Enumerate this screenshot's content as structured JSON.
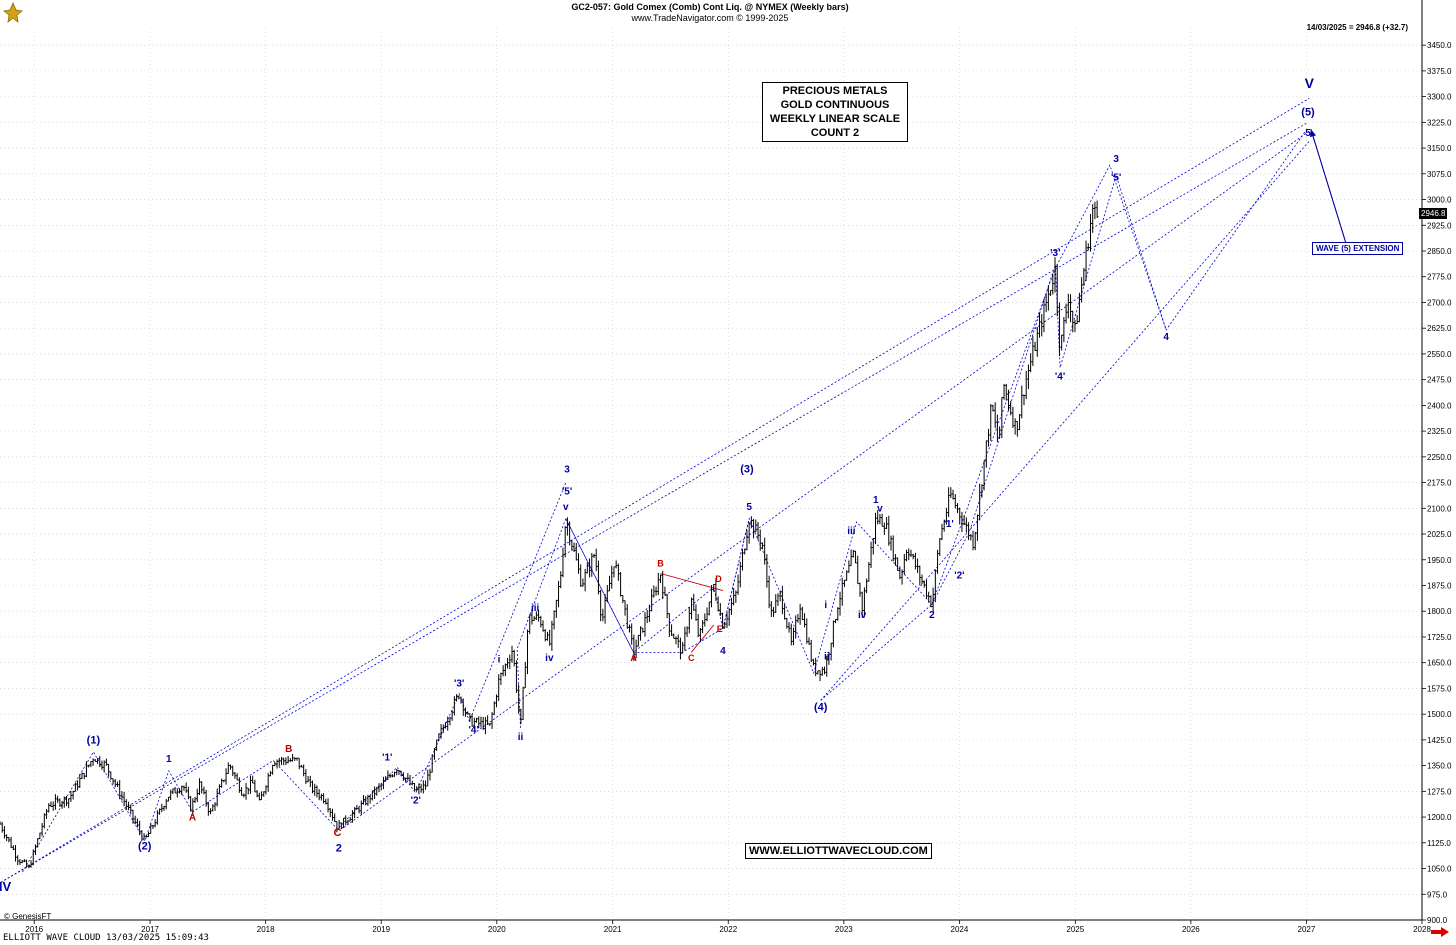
{
  "header": {
    "title": "GC2-057:  Gold Comex (Comb) Cont Liq. @ NYMEX  (Weekly bars)",
    "copyright": "www.TradeNavigator.com © 1999-2025",
    "last_info": "14/03/2025 = 2946.8 (+32.7)"
  },
  "info_box": [
    "PRECIOUS METALS",
    "GOLD CONTINUOUS",
    "WEEKLY LINEAR SCALE",
    "COUNT 2"
  ],
  "site_box": "WWW.ELLIOTTWAVECLOUD.COM",
  "ext_box": "WAVE (5) EXTENSION",
  "last_badge": "2946.8",
  "genesis": "© GenesisFT",
  "footer": "ELLIOTT WAVE CLOUD   13/03/2025 15:09:43",
  "icons": {
    "logo": "trade-navigator-logo-icon",
    "scroll": "scroll-right-arrow-icon"
  },
  "colors": {
    "wave_label": "#0000a0",
    "abc_label": "#c00000",
    "price_bar": "#000000",
    "channel": "#0000cc"
  },
  "chart_data": {
    "type": "ohlc",
    "scale": "linear",
    "bar_period": "weekly",
    "ylim": [
      900,
      3500
    ],
    "xlim": [
      "2015-09-15",
      "2028-01-01"
    ],
    "y_ticks": [
      900,
      975,
      1050,
      1125,
      1200,
      1275,
      1350,
      1425,
      1500,
      1575,
      1650,
      1725,
      1800,
      1875,
      1950,
      2025,
      2100,
      2175,
      2250,
      2325,
      2400,
      2475,
      2550,
      2625,
      2700,
      2775,
      2850,
      2925,
      3000,
      3075,
      3150,
      3225,
      3300,
      3375,
      3450
    ],
    "y_tick_labels": [
      "900.0",
      "975.0",
      "1050.0",
      "1125.0",
      "1200.0",
      "1275.0",
      "1350.0",
      "1425.0",
      "1500.0",
      "1575.0",
      "1650.0",
      "1725.0",
      "1800.0",
      "1875.0",
      "1950.0",
      "2025.0",
      "2100.0",
      "2175.0",
      "2250.0",
      "2325.0",
      "2400.0",
      "2475.0",
      "2550.0",
      "2625.0",
      "2700.0",
      "2775.0",
      "2850.0",
      "2925.0",
      "3000.0",
      "3075.0",
      "3150.0",
      "3225.0",
      "3300.0",
      "3375.0",
      "3450.0"
    ],
    "x_ticks": [
      "2016",
      "2017",
      "2018",
      "2019",
      "2020",
      "2021",
      "2022",
      "2023",
      "2024",
      "2025",
      "2026",
      "2027",
      "2028"
    ],
    "grid": true,
    "price_path": [
      [
        "2015-09-15",
        1180
      ],
      [
        "2015-11-10",
        1080
      ],
      [
        "2015-12-15",
        1050
      ],
      [
        "2016-02-15",
        1235
      ],
      [
        "2016-04-20",
        1255
      ],
      [
        "2016-07-06",
        1375
      ],
      [
        "2016-08-15",
        1350
      ],
      [
        "2016-10-06",
        1255
      ],
      [
        "2016-12-15",
        1130
      ],
      [
        "2017-02-25",
        1260
      ],
      [
        "2017-04-15",
        1295
      ],
      [
        "2017-05-10",
        1225
      ],
      [
        "2017-06-06",
        1295
      ],
      [
        "2017-07-10",
        1210
      ],
      [
        "2017-09-08",
        1355
      ],
      [
        "2017-10-20",
        1270
      ],
      [
        "2017-11-20",
        1300
      ],
      [
        "2017-12-12",
        1240
      ],
      [
        "2018-01-25",
        1365
      ],
      [
        "2018-04-10",
        1365
      ],
      [
        "2018-05-25",
        1285
      ],
      [
        "2018-07-10",
        1250
      ],
      [
        "2018-08-16",
        1170
      ],
      [
        "2018-10-10",
        1215
      ],
      [
        "2019-01-10",
        1300
      ],
      [
        "2019-02-20",
        1345
      ],
      [
        "2019-04-20",
        1275
      ],
      [
        "2019-05-20",
        1290
      ],
      [
        "2019-06-30",
        1430
      ],
      [
        "2019-09-04",
        1560
      ],
      [
        "2019-10-05",
        1480
      ],
      [
        "2019-12-10",
        1465
      ],
      [
        "2020-01-08",
        1600
      ],
      [
        "2020-02-20",
        1690
      ],
      [
        "2020-03-16",
        1460
      ],
      [
        "2020-04-10",
        1780
      ],
      [
        "2020-05-15",
        1780
      ],
      [
        "2020-06-15",
        1700
      ],
      [
        "2020-07-20",
        1900
      ],
      [
        "2020-08-06",
        2070
      ],
      [
        "2020-09-25",
        1880
      ],
      [
        "2020-11-06",
        1970
      ],
      [
        "2020-11-28",
        1770
      ],
      [
        "2021-01-06",
        1950
      ],
      [
        "2021-03-08",
        1680
      ],
      [
        "2021-04-20",
        1790
      ],
      [
        "2021-06-01",
        1910
      ],
      [
        "2021-06-30",
        1750
      ],
      [
        "2021-08-09",
        1680
      ],
      [
        "2021-09-06",
        1835
      ],
      [
        "2021-10-01",
        1720
      ],
      [
        "2021-11-16",
        1875
      ],
      [
        "2021-12-15",
        1760
      ],
      [
        "2022-01-25",
        1850
      ],
      [
        "2022-03-08",
        2070
      ],
      [
        "2022-04-18",
        2000
      ],
      [
        "2022-05-16",
        1790
      ],
      [
        "2022-06-15",
        1850
      ],
      [
        "2022-07-20",
        1700
      ],
      [
        "2022-08-16",
        1820
      ],
      [
        "2022-09-28",
        1630
      ],
      [
        "2022-11-03",
        1630
      ],
      [
        "2022-12-15",
        1830
      ],
      [
        "2023-02-01",
        1965
      ],
      [
        "2023-02-28",
        1810
      ],
      [
        "2023-04-12",
        2070
      ],
      [
        "2023-05-10",
        2060
      ],
      [
        "2023-06-28",
        1900
      ],
      [
        "2023-07-20",
        1990
      ],
      [
        "2023-10-06",
        1820
      ],
      [
        "2023-10-30",
        2010
      ],
      [
        "2023-12-04",
        2140
      ],
      [
        "2024-02-14",
        2000
      ],
      [
        "2024-04-12",
        2400
      ],
      [
        "2024-05-03",
        2290
      ],
      [
        "2024-05-20",
        2460
      ],
      [
        "2024-06-28",
        2330
      ],
      [
        "2024-07-25",
        2460
      ],
      [
        "2024-10-30",
        2800
      ],
      [
        "2024-11-14",
        2560
      ],
      [
        "2024-12-10",
        2720
      ],
      [
        "2024-12-30",
        2610
      ],
      [
        "2025-02-24",
        2970
      ],
      [
        "2025-03-14",
        2946.8
      ]
    ],
    "channel_lines": [
      [
        [
          "2015-09-18",
          1010
        ],
        [
          "2027-01-10",
          3295
        ]
      ],
      [
        [
          "2015-09-18",
          1010
        ],
        [
          "2027-01-06",
          3225
        ]
      ],
      [
        [
          "2018-09-05",
          1170
        ],
        [
          "2027-01-10",
          3200
        ]
      ],
      [
        [
          "2022-10-20",
          1540
        ],
        [
          "2027-01-10",
          3170
        ]
      ]
    ],
    "wave_paths": [
      [
        [
          "2015-11-25",
          1040
        ],
        [
          "2016-07-06",
          1390
        ],
        [
          "2016-12-15",
          1130
        ],
        [
          "2017-03-01",
          1335
        ],
        [
          "2017-05-15",
          1215
        ],
        [
          "2018-01-25",
          1365
        ],
        [
          "2018-08-16",
          1165
        ],
        [
          "2019-02-20",
          1345
        ],
        [
          "2019-04-20",
          1270
        ],
        [
          "2019-09-04",
          1560
        ],
        [
          "2019-10-06",
          1480
        ],
        [
          "2020-08-06",
          2175
        ]
      ],
      [
        [
          "2020-03-16",
          1460
        ],
        [
          "2020-03-05",
          1690
        ],
        [
          "2020-08-06",
          2070
        ],
        [
          "2021-03-08",
          1680
        ],
        [
          "2021-08-09",
          1680
        ],
        [
          "2021-12-15",
          1750
        ],
        [
          "2022-03-08",
          2070
        ],
        [
          "2022-09-28",
          1620
        ],
        [
          "2023-02-10",
          2060
        ],
        [
          "2023-10-06",
          1820
        ],
        [
          "2024-02-01",
          2030
        ],
        [
          "2024-10-30",
          2810
        ],
        [
          "2024-11-14",
          2510
        ],
        [
          "2025-05-10",
          3070
        ],
        [
          "2025-10-15",
          2620
        ],
        [
          "2027-01-06",
          3210
        ]
      ],
      [
        [
          "2020-08-06",
          2070
        ],
        [
          "2021-03-08",
          1680
        ],
        [
          "2021-11-16",
          1870
        ],
        [
          "2021-12-15",
          1750
        ],
        [
          "2022-03-08",
          2070
        ]
      ],
      [
        [
          "2022-10-20",
          1540
        ],
        [
          "2023-10-06",
          1820
        ],
        [
          "2024-10-30",
          2800
        ],
        [
          "2025-04-20",
          3100
        ],
        [
          "2025-10-15",
          2620
        ]
      ]
    ],
    "triangle": [
      [
        "2021-06-01",
        1910
      ],
      [
        "2021-09-06",
        1680
      ],
      [
        "2021-12-15",
        1860
      ],
      [
        "2021-11-16",
        1760
      ]
    ],
    "annotations": [
      {
        "text": "IV",
        "x": "2015-10-01",
        "y": 985,
        "color": "blue",
        "size": 13
      },
      {
        "text": "(1)",
        "x": "2016-07-06",
        "y": 1415,
        "color": "blue",
        "size": 11
      },
      {
        "text": "(2)",
        "x": "2016-12-15",
        "y": 1105,
        "color": "blue",
        "size": 11
      },
      {
        "text": "1",
        "x": "2017-03-01",
        "y": 1360,
        "color": "blue",
        "size": 10
      },
      {
        "text": "A",
        "x": "2017-05-15",
        "y": 1190,
        "color": "red",
        "size": 10
      },
      {
        "text": "B",
        "x": "2018-03-15",
        "y": 1390,
        "color": "red",
        "size": 10
      },
      {
        "text": "C",
        "x": "2018-08-16",
        "y": 1145,
        "color": "red",
        "size": 11
      },
      {
        "text": "2",
        "x": "2018-08-20",
        "y": 1100,
        "color": "blue",
        "size": 11
      },
      {
        "text": "'1'",
        "x": "2019-01-20",
        "y": 1365,
        "color": "blue",
        "size": 10
      },
      {
        "text": "'2'",
        "x": "2019-04-20",
        "y": 1240,
        "color": "blue",
        "size": 10
      },
      {
        "text": "'3'",
        "x": "2019-09-04",
        "y": 1580,
        "color": "blue",
        "size": 10
      },
      {
        "text": "'4'",
        "x": "2019-10-20",
        "y": 1445,
        "color": "blue",
        "size": 10
      },
      {
        "text": "i",
        "x": "2020-01-08",
        "y": 1650,
        "color": "blue",
        "size": 10
      },
      {
        "text": "ii",
        "x": "2020-03-16",
        "y": 1425,
        "color": "blue",
        "size": 10
      },
      {
        "text": "iii",
        "x": "2020-05-01",
        "y": 1800,
        "color": "blue",
        "size": 10
      },
      {
        "text": "iv",
        "x": "2020-06-15",
        "y": 1655,
        "color": "blue",
        "size": 10
      },
      {
        "text": "v",
        "x": "2020-08-06",
        "y": 2095,
        "color": "blue",
        "size": 10
      },
      {
        "text": "'5'",
        "x": "2020-08-10",
        "y": 2140,
        "color": "blue",
        "size": 10
      },
      {
        "text": "3",
        "x": "2020-08-10",
        "y": 2205,
        "color": "blue",
        "size": 10
      },
      {
        "text": "A",
        "x": "2021-03-08",
        "y": 1655,
        "color": "red",
        "size": 9
      },
      {
        "text": "B",
        "x": "2021-06-01",
        "y": 1930,
        "color": "red",
        "size": 9
      },
      {
        "text": "C",
        "x": "2021-09-06",
        "y": 1655,
        "color": "red",
        "size": 9
      },
      {
        "text": "D",
        "x": "2021-12-01",
        "y": 1885,
        "color": "red",
        "size": 9
      },
      {
        "text": "E",
        "x": "2021-12-05",
        "y": 1740,
        "color": "red",
        "size": 9
      },
      {
        "text": "4",
        "x": "2021-12-15",
        "y": 1675,
        "color": "blue",
        "size": 10
      },
      {
        "text": "5",
        "x": "2022-03-08",
        "y": 2095,
        "color": "blue",
        "size": 10
      },
      {
        "text": "(3)",
        "x": "2022-03-01",
        "y": 2205,
        "color": "blue",
        "size": 11
      },
      {
        "text": "i",
        "x": "2022-11-05",
        "y": 1810,
        "color": "blue",
        "size": 10
      },
      {
        "text": "ii",
        "x": "2022-11-08",
        "y": 1660,
        "color": "blue",
        "size": 10
      },
      {
        "text": "(4)",
        "x": "2022-10-20",
        "y": 1510,
        "color": "blue",
        "size": 11
      },
      {
        "text": "iii",
        "x": "2023-01-25",
        "y": 2025,
        "color": "blue",
        "size": 10
      },
      {
        "text": "iv",
        "x": "2023-02-28",
        "y": 1780,
        "color": "blue",
        "size": 10
      },
      {
        "text": "1",
        "x": "2023-04-12",
        "y": 2115,
        "color": "blue",
        "size": 10
      },
      {
        "text": "v",
        "x": "2023-04-25",
        "y": 2090,
        "color": "blue",
        "size": 10
      },
      {
        "text": "2",
        "x": "2023-10-06",
        "y": 1780,
        "color": "blue",
        "size": 10
      },
      {
        "text": "'1'",
        "x": "2023-11-28",
        "y": 2045,
        "color": "blue",
        "size": 10
      },
      {
        "text": "'2'",
        "x": "2024-01-01",
        "y": 1895,
        "color": "blue",
        "size": 10
      },
      {
        "text": "'3'",
        "x": "2024-10-30",
        "y": 2835,
        "color": "blue",
        "size": 10
      },
      {
        "text": "'4'",
        "x": "2024-11-14",
        "y": 2475,
        "color": "blue",
        "size": 10
      },
      {
        "text": "'5'",
        "x": "2025-05-10",
        "y": 3055,
        "color": "blue",
        "size": 10
      },
      {
        "text": "3",
        "x": "2025-05-10",
        "y": 3110,
        "color": "blue",
        "size": 10
      },
      {
        "text": "4",
        "x": "2025-10-15",
        "y": 2590,
        "color": "blue",
        "size": 10
      },
      {
        "text": "5",
        "x": "2027-01-06",
        "y": 3185,
        "color": "blue",
        "size": 10
      },
      {
        "text": "(5)",
        "x": "2027-01-06",
        "y": 3245,
        "color": "blue",
        "size": 11
      },
      {
        "text": "V",
        "x": "2027-01-10",
        "y": 3325,
        "color": "blue",
        "size": 14
      }
    ],
    "arrow": {
      "from": [
        "2027-05-15",
        2845
      ],
      "to": [
        "2027-01-15",
        3205
      ]
    }
  }
}
